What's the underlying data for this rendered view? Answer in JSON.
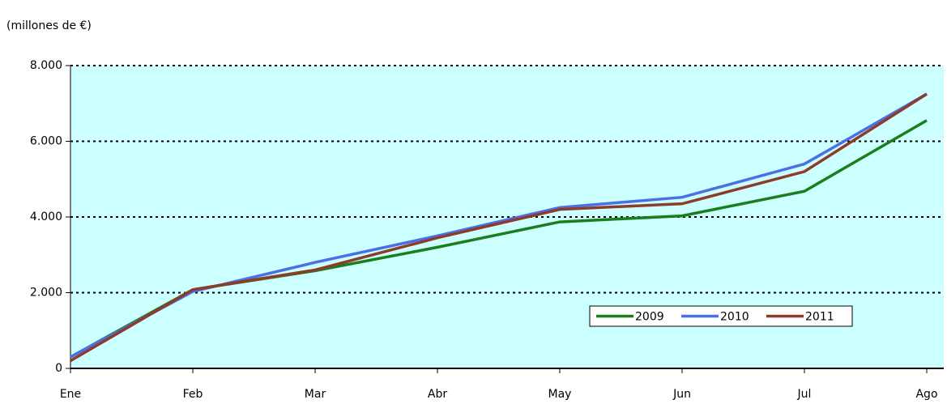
{
  "chart_data": {
    "type": "line",
    "subtitle": "(millones de €)",
    "categories": [
      "Ene",
      "Feb",
      "Mar",
      "Abr",
      "May",
      "Jun",
      "Jul",
      "Ago"
    ],
    "series": [
      {
        "name": "2009",
        "color": "#1a7f1a",
        "values": [
          300,
          2080,
          2580,
          3200,
          3870,
          4030,
          4680,
          6550
        ]
      },
      {
        "name": "2010",
        "color": "#4a6fe6",
        "values": [
          300,
          2030,
          2800,
          3500,
          4250,
          4520,
          5400,
          7250
        ]
      },
      {
        "name": "2011",
        "color": "#8e3b2b",
        "values": [
          200,
          2080,
          2600,
          3450,
          4200,
          4350,
          5200,
          7250
        ]
      }
    ],
    "ylim": [
      0,
      8000
    ],
    "yticks": [
      {
        "value": 0,
        "label": "0"
      },
      {
        "value": 2000,
        "label": "2.000"
      },
      {
        "value": 4000,
        "label": "4.000"
      },
      {
        "value": 6000,
        "label": "6.000"
      },
      {
        "value": 8000,
        "label": "8.000"
      }
    ],
    "grid": true,
    "background": "#ccffff"
  }
}
